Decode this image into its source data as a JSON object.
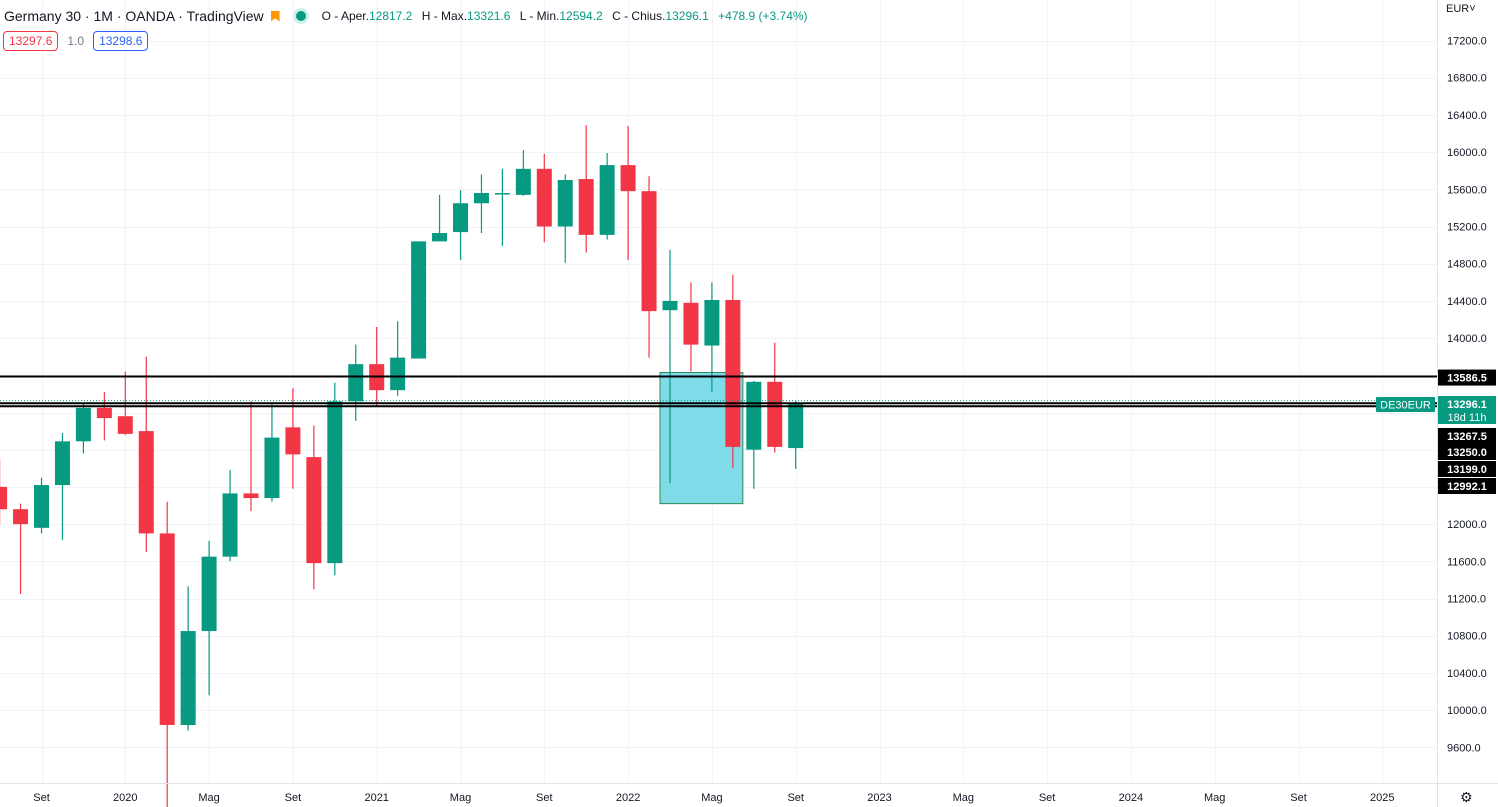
{
  "header": {
    "title": "Germany 30 · 1M · OANDA · TradingView",
    "ohlc": {
      "open_label": "O - Aper.",
      "open": "12817.2",
      "high_label": "H - Max.",
      "high": "13321.6",
      "low_label": "L - Min.",
      "low": "12594.2",
      "close_label": "C - Chius.",
      "close": "13296.1",
      "change": "+478.9 (+3.74%)"
    },
    "bid": "13297.6",
    "spread": "1.0",
    "ask": "13298.6",
    "currency": "EUR"
  },
  "colors": {
    "up": "#089981",
    "down": "#f23645",
    "zone_fill": "#7fdbe8",
    "zone_border": "#2e8b57",
    "grid": "#f0f3fa",
    "axis_text": "#131722"
  },
  "chart_data": {
    "type": "candlestick",
    "symbol": "DE30EUR",
    "y_axis": {
      "ticks": [
        9600,
        10000,
        10400,
        10800,
        11200,
        11600,
        12000,
        12400,
        12800,
        13200,
        13600,
        14000,
        14400,
        14800,
        15200,
        15600,
        16000,
        16400,
        16800,
        17200
      ],
      "tick_labels": [
        "9600.0",
        "10000.0",
        "10400.0",
        "10800.0",
        "11200.0",
        "11600.0",
        "12000.0",
        "12400.0",
        "12800.0",
        "13200.0",
        "13600.0",
        "14000.0",
        "14400.0",
        "14800.0",
        "15200.0",
        "15600.0",
        "16000.0",
        "16400.0",
        "16800.0",
        "17200.0"
      ],
      "ylim": [
        9260,
        17580
      ]
    },
    "x_axis": {
      "labels": [
        "Set",
        "2020",
        "Mag",
        "Set",
        "2021",
        "Mag",
        "Set",
        "2022",
        "Mag",
        "Set",
        "2023",
        "Mag",
        "Set",
        "2024",
        "Mag",
        "Set",
        "2025"
      ],
      "label_months": [
        "2019-09",
        "2020-01",
        "2020-05",
        "2020-09",
        "2021-01",
        "2021-05",
        "2021-09",
        "2022-01",
        "2022-05",
        "2022-09",
        "2023-01",
        "2023-05",
        "2023-09",
        "2024-01",
        "2024-05",
        "2024-09",
        "2025-01"
      ]
    },
    "candles": [
      {
        "m": "2019-07",
        "o": 12400,
        "h": 12700,
        "l": 12000,
        "c": 12160
      },
      {
        "m": "2019-08",
        "o": 12160,
        "h": 12220,
        "l": 11250,
        "c": 12000
      },
      {
        "m": "2019-09",
        "o": 11960,
        "h": 12500,
        "l": 11900,
        "c": 12420
      },
      {
        "m": "2019-10",
        "o": 12420,
        "h": 12980,
        "l": 11830,
        "c": 12890
      },
      {
        "m": "2019-11",
        "o": 12890,
        "h": 13300,
        "l": 12760,
        "c": 13250
      },
      {
        "m": "2019-12",
        "o": 13250,
        "h": 13420,
        "l": 12900,
        "c": 13140
      },
      {
        "m": "2020-01",
        "o": 13160,
        "h": 13640,
        "l": 12960,
        "c": 12970
      },
      {
        "m": "2020-02",
        "o": 13000,
        "h": 13800,
        "l": 11700,
        "c": 11900
      },
      {
        "m": "2020-03",
        "o": 11900,
        "h": 12240,
        "l": 8260,
        "c": 9840
      },
      {
        "m": "2020-04",
        "o": 9840,
        "h": 11330,
        "l": 9780,
        "c": 10850
      },
      {
        "m": "2020-05",
        "o": 10850,
        "h": 11820,
        "l": 10160,
        "c": 11650
      },
      {
        "m": "2020-06",
        "o": 11650,
        "h": 12580,
        "l": 11600,
        "c": 12330
      },
      {
        "m": "2020-07",
        "o": 12330,
        "h": 13320,
        "l": 12140,
        "c": 12280
      },
      {
        "m": "2020-08",
        "o": 12280,
        "h": 13310,
        "l": 12240,
        "c": 12930
      },
      {
        "m": "2020-09",
        "o": 13040,
        "h": 13460,
        "l": 12380,
        "c": 12750
      },
      {
        "m": "2020-10",
        "o": 12720,
        "h": 13060,
        "l": 11300,
        "c": 11580
      },
      {
        "m": "2020-11",
        "o": 11580,
        "h": 13520,
        "l": 11450,
        "c": 13320
      },
      {
        "m": "2020-12",
        "o": 13320,
        "h": 13930,
        "l": 13110,
        "c": 13720
      },
      {
        "m": "2021-01",
        "o": 13720,
        "h": 14120,
        "l": 13270,
        "c": 13440
      },
      {
        "m": "2021-02",
        "o": 13440,
        "h": 14180,
        "l": 13380,
        "c": 13790
      },
      {
        "m": "2021-03",
        "o": 13780,
        "h": 15040,
        "l": 13780,
        "c": 15040
      },
      {
        "m": "2021-04",
        "o": 15040,
        "h": 15540,
        "l": 15040,
        "c": 15130
      },
      {
        "m": "2021-05",
        "o": 15140,
        "h": 15590,
        "l": 14840,
        "c": 15450
      },
      {
        "m": "2021-06",
        "o": 15450,
        "h": 15760,
        "l": 15130,
        "c": 15560
      },
      {
        "m": "2021-07",
        "o": 15560,
        "h": 15820,
        "l": 14990,
        "c": 15560
      },
      {
        "m": "2021-08",
        "o": 15540,
        "h": 16020,
        "l": 15530,
        "c": 15820
      },
      {
        "m": "2021-09",
        "o": 15820,
        "h": 15980,
        "l": 15030,
        "c": 15200
      },
      {
        "m": "2021-10",
        "o": 15200,
        "h": 15760,
        "l": 14810,
        "c": 15700
      },
      {
        "m": "2021-11",
        "o": 15710,
        "h": 16290,
        "l": 14920,
        "c": 15110
      },
      {
        "m": "2021-12",
        "o": 15110,
        "h": 15990,
        "l": 15060,
        "c": 15860
      },
      {
        "m": "2022-01",
        "o": 15860,
        "h": 16280,
        "l": 14840,
        "c": 15580
      },
      {
        "m": "2022-02",
        "o": 15580,
        "h": 15740,
        "l": 13790,
        "c": 14290
      },
      {
        "m": "2022-03",
        "o": 14300,
        "h": 14950,
        "l": 12440,
        "c": 14400
      },
      {
        "m": "2022-04",
        "o": 14380,
        "h": 14600,
        "l": 13640,
        "c": 13930
      },
      {
        "m": "2022-05",
        "o": 13920,
        "h": 14600,
        "l": 13420,
        "c": 14410
      },
      {
        "m": "2022-06",
        "o": 14410,
        "h": 14680,
        "l": 12600,
        "c": 12830
      },
      {
        "m": "2022-07",
        "o": 12800,
        "h": 13540,
        "l": 12380,
        "c": 13530
      },
      {
        "m": "2022-08",
        "o": 13530,
        "h": 13950,
        "l": 12770,
        "c": 12830
      },
      {
        "m": "2022-09",
        "o": 12817.2,
        "h": 13321.6,
        "l": 12594.2,
        "c": 13296.1
      }
    ],
    "horizontal_lines": [
      {
        "price": 13586.5,
        "label": "13586.5"
      },
      {
        "price": 13300,
        "label": ""
      },
      {
        "price": 13267.5,
        "label": "13267.5"
      }
    ],
    "zone": {
      "m_start": "2022-03",
      "m_end": "2022-06",
      "top": 13630,
      "bottom": 12220
    },
    "price_labels": [
      "13250.0",
      "13199.0",
      "12992.1"
    ],
    "current": {
      "symbol_badge": "DE30EUR",
      "price": "13296.1",
      "countdown": "18d 11h"
    }
  }
}
